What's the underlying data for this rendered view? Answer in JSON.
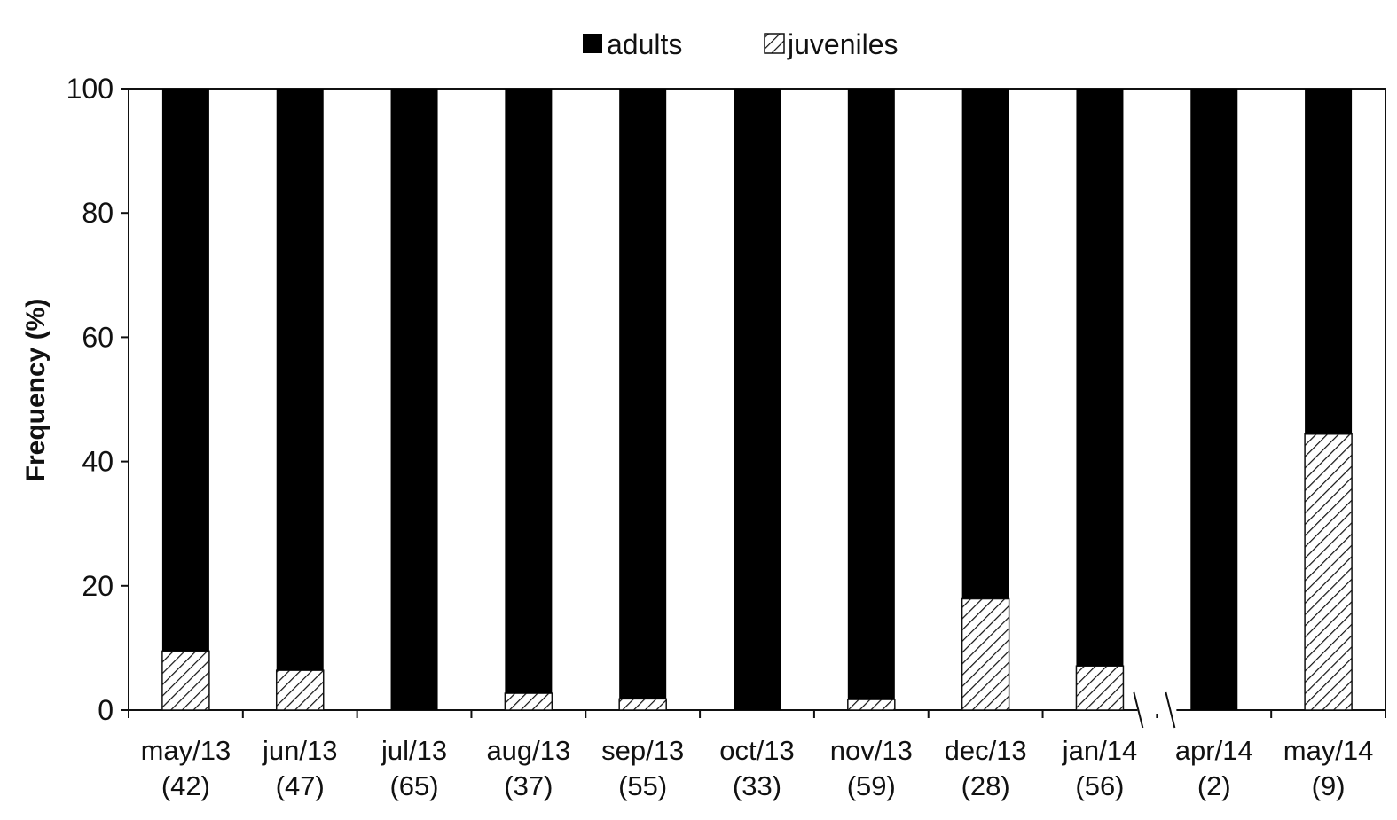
{
  "chart_data": {
    "type": "bar",
    "stacked": true,
    "ylabel": "Frequency (%)",
    "xlabel": "",
    "ylim": [
      0,
      100
    ],
    "yticks": [
      0,
      20,
      40,
      60,
      80,
      100
    ],
    "legend_position": "top-center",
    "axis_break_between": [
      "jan/14",
      "apr/14"
    ],
    "categories": [
      {
        "month": "may/13",
        "n": "(42)"
      },
      {
        "month": "jun/13",
        "n": "(47)"
      },
      {
        "month": "jul/13",
        "n": "(65)"
      },
      {
        "month": "aug/13",
        "n": "(37)"
      },
      {
        "month": "sep/13",
        "n": "(55)"
      },
      {
        "month": "oct/13",
        "n": "(33)"
      },
      {
        "month": "nov/13",
        "n": "(59)"
      },
      {
        "month": "dec/13",
        "n": "(28)"
      },
      {
        "month": "jan/14",
        "n": "(56)"
      },
      {
        "month": "apr/14",
        "n": "(2)"
      },
      {
        "month": "may/14",
        "n": "(9)"
      }
    ],
    "series": [
      {
        "name": "juveniles",
        "fill": "hatched",
        "color": "#000000",
        "values": [
          9.5,
          6.4,
          0,
          2.7,
          1.8,
          0,
          1.7,
          17.9,
          7.1,
          0,
          44.4
        ]
      },
      {
        "name": "adults",
        "fill": "solid",
        "color": "#000000",
        "values": [
          90.5,
          93.6,
          100,
          97.3,
          98.2,
          100,
          98.3,
          82.1,
          92.9,
          100,
          55.6
        ]
      }
    ]
  }
}
